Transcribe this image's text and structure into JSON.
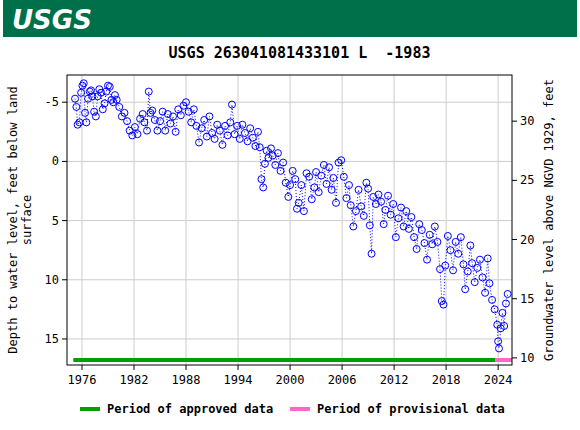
{
  "chart_data": {
    "type": "scatter",
    "logo_text": "USGS",
    "title": "USGS 263041081433101 L  -1983",
    "ylabel": [
      "Depth to water level, feet below land",
      "surface"
    ],
    "y2label": "Groundwater level above NGVD 1929, feet",
    "xlim": [
      1974.27,
      2025.6
    ],
    "xticks": [
      1976,
      1982,
      1988,
      1994,
      2000,
      2006,
      2012,
      2018,
      2024
    ],
    "ylim": [
      17.2,
      -7.3
    ],
    "yticks": [
      -5,
      0,
      5,
      10,
      15
    ],
    "y2lim": [
      9.4,
      33.9
    ],
    "y2ticks": [
      10,
      15,
      20,
      25,
      30
    ],
    "grid": true,
    "series": [
      {
        "color": "#0000ff",
        "marker": "circle",
        "line_style": "dotted",
        "x": [
          1975.2,
          1975.35,
          1975.5,
          1975.7,
          1975.9,
          1976.05,
          1976.2,
          1976.35,
          1976.5,
          1976.7,
          1976.9,
          1977.05,
          1977.2,
          1977.4,
          1977.6,
          1977.8,
          1978.0,
          1978.2,
          1978.4,
          1978.6,
          1978.8,
          1979.0,
          1979.2,
          1979.4,
          1979.6,
          1979.8,
          1980.0,
          1980.3,
          1980.6,
          1980.9,
          1981.2,
          1981.5,
          1981.8,
          1982.1,
          1982.4,
          1982.7,
          1983.0,
          1983.2,
          1983.5,
          1983.7,
          1983.9,
          1984.1,
          1984.4,
          1984.7,
          1985.0,
          1985.3,
          1985.6,
          1985.9,
          1986.2,
          1986.5,
          1986.8,
          1987.1,
          1987.4,
          1987.7,
          1988.0,
          1988.3,
          1988.6,
          1988.9,
          1989.2,
          1989.5,
          1989.8,
          1990.1,
          1990.4,
          1990.7,
          1991.0,
          1991.3,
          1991.6,
          1991.9,
          1992.2,
          1992.5,
          1992.8,
          1993.1,
          1993.3,
          1993.6,
          1993.9,
          1994.2,
          1994.5,
          1994.8,
          1995.1,
          1995.4,
          1995.7,
          1996.0,
          1996.3,
          1996.5,
          1996.7,
          1996.9,
          1997.1,
          1997.3,
          1997.5,
          1997.8,
          1998.0,
          1998.3,
          1998.6,
          1998.9,
          1999.2,
          1999.5,
          1999.8,
          2000.0,
          2000.3,
          2000.6,
          2000.8,
          2001.0,
          2001.3,
          2001.6,
          2001.9,
          2002.2,
          2002.5,
          2002.8,
          2003.0,
          2003.3,
          2003.6,
          2003.9,
          2004.2,
          2004.5,
          2004.8,
          2005.0,
          2005.3,
          2005.6,
          2005.9,
          2006.2,
          2006.5,
          2006.8,
          2007.0,
          2007.3,
          2007.6,
          2007.9,
          2008.2,
          2008.5,
          2008.8,
          2009.0,
          2009.2,
          2009.4,
          2009.6,
          2009.9,
          2010.2,
          2010.5,
          2010.8,
          2011.0,
          2011.3,
          2011.6,
          2011.9,
          2012.2,
          2012.5,
          2012.8,
          2013.1,
          2013.4,
          2013.7,
          2014.0,
          2014.3,
          2014.6,
          2014.9,
          2015.2,
          2015.5,
          2015.8,
          2016.1,
          2016.4,
          2016.7,
          2017.0,
          2017.3,
          2017.5,
          2017.7,
          2017.9,
          2018.2,
          2018.5,
          2018.8,
          2019.1,
          2019.4,
          2019.7,
          2020.0,
          2020.2,
          2020.5,
          2020.8,
          2021.0,
          2021.3,
          2021.6,
          2021.9,
          2022.2,
          2022.5,
          2022.8,
          2023.0,
          2023.3,
          2023.6,
          2023.9,
          2024.0,
          2024.1,
          2024.3,
          2024.5,
          2024.7,
          2024.9,
          2025.1
        ],
        "values": [
          -5.3,
          -4.6,
          -3.1,
          -3.3,
          -5.8,
          -6.4,
          -6.6,
          -4.1,
          -3.3,
          -5.3,
          -5.9,
          -6.0,
          -5.5,
          -4.2,
          -3.8,
          -5.5,
          -6.1,
          -5.8,
          -4.4,
          -4.9,
          -5.9,
          -6.4,
          -6.3,
          -5.2,
          -5.0,
          -5.6,
          -5.2,
          -4.6,
          -3.8,
          -4.1,
          -3.4,
          -2.6,
          -2.2,
          -2.9,
          -2.3,
          -3.6,
          -4.0,
          -3.3,
          -2.6,
          -5.9,
          -4.1,
          -4.3,
          -3.5,
          -2.6,
          -3.4,
          -4.2,
          -2.6,
          -4.0,
          -3.2,
          -3.8,
          -2.5,
          -4.4,
          -3.9,
          -4.7,
          -5.0,
          -4.2,
          -3.3,
          -4.4,
          -3.0,
          -1.6,
          -2.8,
          -3.5,
          -2.1,
          -3.8,
          -2.4,
          -1.9,
          -3.1,
          -2.6,
          -1.4,
          -3.0,
          -2.2,
          -3.3,
          -4.8,
          -2.3,
          -3.0,
          -1.9,
          -3.1,
          -2.4,
          -1.7,
          -2.8,
          -2.0,
          -1.3,
          -2.5,
          -1.2,
          1.5,
          2.2,
          0.2,
          -0.9,
          -0.3,
          -1.1,
          -0.5,
          0.3,
          -0.7,
          0.8,
          0.1,
          1.8,
          3.0,
          2.0,
          0.8,
          1.5,
          4.0,
          3.5,
          2.0,
          4.2,
          1.0,
          1.3,
          3.2,
          2.2,
          0.9,
          2.6,
          1.2,
          0.3,
          1.9,
          0.5,
          2.4,
          1.4,
          3.5,
          0.1,
          -0.1,
          1.3,
          3.1,
          2.0,
          3.7,
          5.5,
          4.2,
          2.4,
          3.8,
          4.6,
          1.8,
          2.3,
          5.4,
          7.8,
          3.0,
          3.6,
          2.8,
          3.4,
          5.3,
          4.1,
          2.9,
          4.5,
          3.6,
          6.4,
          4.8,
          3.9,
          5.5,
          4.2,
          5.7,
          4.7,
          6.4,
          7.4,
          5.3,
          5.8,
          6.9,
          8.3,
          6.2,
          7.0,
          5.5,
          6.8,
          9.1,
          11.8,
          12.1,
          8.8,
          6.3,
          7.5,
          9.2,
          6.8,
          7.8,
          6.4,
          8.7,
          10.8,
          9.3,
          7.1,
          8.6,
          10.2,
          9.0,
          8.3,
          9.8,
          11.1,
          8.2,
          10.3,
          11.7,
          12.5,
          13.8,
          15.2,
          15.8,
          14.1,
          12.8,
          13.9,
          12.0,
          11.2
        ]
      }
    ],
    "periods": [
      {
        "name": "Period of approved data",
        "color": "#00a000",
        "start": 1975.0,
        "end": 2023.7
      },
      {
        "name": "Period of provisional data",
        "color": "#ff66cc",
        "start": 2023.7,
        "end": 2025.6
      }
    ]
  }
}
